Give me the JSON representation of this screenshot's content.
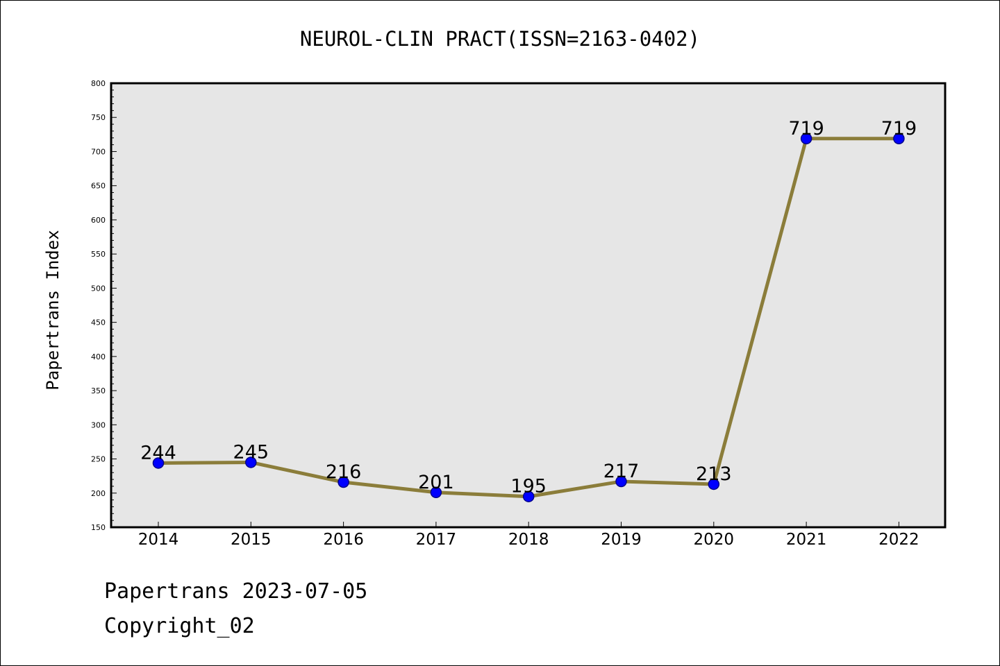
{
  "colors": {
    "plot_background": "#e6e6e6",
    "line": "#8b7d3a",
    "marker_fill": "#0000ff",
    "marker_edge": "#00008b",
    "text": "#000000"
  },
  "footer": {
    "line1": "Papertrans 2023-07-05",
    "line2": "Copyright_02"
  },
  "chart_data": {
    "type": "line",
    "title": "NEUROL-CLIN PRACT(ISSN=2163-0402)",
    "xlabel": "",
    "ylabel": "Papertrans Index",
    "categories": [
      "2014",
      "2015",
      "2016",
      "2017",
      "2018",
      "2019",
      "2020",
      "2021",
      "2022"
    ],
    "series": [
      {
        "values": [
          244,
          245,
          216,
          201,
          195,
          217,
          213,
          719,
          719
        ]
      }
    ],
    "data_labels": [
      "244",
      "245",
      "216",
      "201",
      "195",
      "217",
      "213",
      "719",
      "719"
    ],
    "ylim": [
      150,
      800
    ],
    "yticks": [
      150,
      200,
      250,
      300,
      350,
      400,
      450,
      500,
      550,
      600,
      650,
      700,
      750,
      800
    ],
    "grid": false,
    "legend": "none"
  }
}
